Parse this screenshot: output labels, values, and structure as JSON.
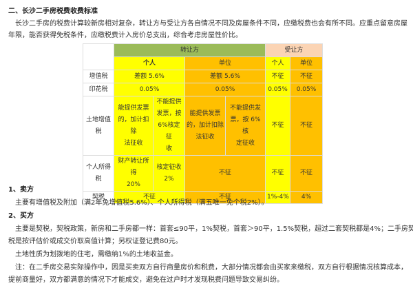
{
  "heading": "二、长沙二手房税费收费标准",
  "intro_line1": "长沙二手房的税费计算较新房相对复杂，转让方与受让方各自情况不同及房屋条件不同，应缴税费也会有所不同。应重点留意房屋",
  "intro_line2": "年限，能否获得免税条件，应缴税费计入房价总支出，综合考虑房屋性价比。",
  "table": {
    "colors": {
      "transferor_header": "#9bbb59",
      "transferee_header": "#fbd4b4",
      "individual": "#ffff00",
      "unit": "#ffc000"
    },
    "transferor": "转让方",
    "transferee": "受让方",
    "individual": "个人",
    "unit": "单位",
    "rows": {
      "vat": {
        "label": "增值税",
        "ind": "差额 5.6%",
        "unit": "差额 5.6%",
        "b_ind": "不征",
        "b_unit": "不征"
      },
      "stamp": {
        "label": "印花税",
        "ind": "0.05%",
        "unit": "0.05%",
        "b_ind": "0.05%",
        "b_unit": "0.05%"
      },
      "land": {
        "label": "土地增值\n税",
        "ind_a": "能提供发票\n的，加计扣除\n法征收",
        "ind_b": "不能提供\n发票，按\n6%核定征\n收",
        "unit_a": "能提供发票\n的，加计扣除\n法征收",
        "unit_b": "不能提供发\n票，按 6%核\n定征收",
        "b_ind": "不征",
        "b_unit": "不征"
      },
      "income": {
        "label": "个人所得\n税",
        "ind_a": "财产转让所得\n20%",
        "ind_b": "核定征收\n2%",
        "unit": "不征",
        "b_ind": "不征",
        "b_unit": "不征"
      },
      "deed": {
        "label": "契税",
        "ind": "不征",
        "unit": "不征",
        "b_ind": "1%-4%",
        "b_unit": "4%"
      }
    }
  },
  "seller_heading": "1、卖方",
  "seller_text": "主要有增值税及附加（满2年免增值税5.6%）、个人所得税（满五唯一免个税2%）。",
  "buyer_heading": "2、买方",
  "buyer_line1": "主要是契税，契税政策，新房和二手房都一样：首套≤90平，1%契税，首套＞90平，1.5%契税，超过二套契税都是4%；二手房契",
  "buyer_line2": "税是按评估价或成交价取高值计算；另权证登记费80元。",
  "land_note": "土地性质为划拨地的住宅，需缴纳1%的土地收益金。",
  "note_line1": "注：在二手房交易实际操作中，因是买卖双方自行商量房价和税费，大部分情况都会由买家来缴税，双方自行根据情况核算成本，",
  "note_line2": "提前商量好，双方都满意的情况下才能成交，避免在过户时才发现税费问题导致交易纠纷。"
}
